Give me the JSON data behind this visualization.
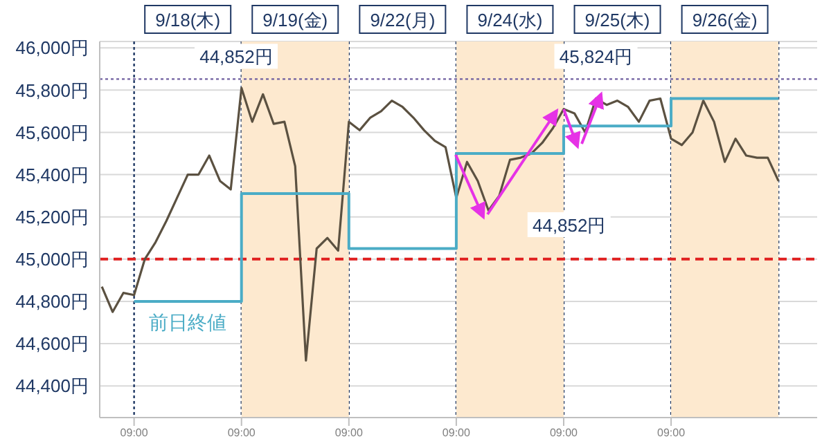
{
  "chart_data": {
    "type": "line",
    "categories": [
      null,
      null,
      null,
      "09:00",
      null,
      null,
      null,
      null,
      null,
      null,
      null,
      null,
      null,
      "09:00",
      null,
      null,
      null,
      null,
      null,
      null,
      null,
      null,
      null,
      "09:00",
      null,
      null,
      null,
      null,
      null,
      null,
      null,
      null,
      null,
      "09:00",
      null,
      null,
      null,
      null,
      null,
      null,
      null,
      null,
      null,
      "09:00",
      null,
      null,
      null,
      null,
      null,
      null,
      null,
      null,
      null,
      "09:00",
      null,
      null,
      null,
      null,
      null,
      null,
      null,
      null,
      null,
      null,
      null,
      null,
      null
    ],
    "ylim": [
      44250,
      46030
    ],
    "yticks": [
      {
        "value": 44400,
        "label": "44,400円"
      },
      {
        "value": 44600,
        "label": "44,600円"
      },
      {
        "value": 44800,
        "label": "44,800円"
      },
      {
        "value": 45000,
        "label": "45,000円"
      },
      {
        "value": 45200,
        "label": "45,200円"
      },
      {
        "value": 45400,
        "label": "45,400円"
      },
      {
        "value": 45600,
        "label": "45,600円"
      },
      {
        "value": 45800,
        "label": "45,800円"
      },
      {
        "value": 46000,
        "label": "46,000円"
      }
    ],
    "grid": true,
    "series": [
      {
        "color": "#5b5141",
        "values": [
          44870,
          44750,
          44840,
          44830,
          45000,
          45080,
          45180,
          45290,
          45400,
          45400,
          45490,
          45370,
          45330,
          45810,
          45650,
          45780,
          45640,
          45650,
          45440,
          44520,
          45050,
          45100,
          45040,
          45650,
          45610,
          45670,
          45700,
          45750,
          45720,
          45670,
          45610,
          45560,
          45530,
          45290,
          45460,
          45370,
          45230,
          45300,
          45470,
          45480,
          45500,
          45550,
          45620,
          45710,
          45690,
          45600,
          45760,
          45730,
          45750,
          45720,
          45650,
          45750,
          45760,
          45570,
          45540,
          45600,
          45750,
          45650,
          45460,
          45570,
          45490,
          45480,
          45480,
          45370,
          null,
          null,
          null
        ]
      },
      {
        "name": "前日終値",
        "type": "step",
        "color": "#4bacc6",
        "values": [
          null,
          null,
          null,
          44800,
          44800,
          44800,
          44800,
          44800,
          44800,
          44800,
          44800,
          44800,
          44800,
          45310,
          45310,
          45310,
          45310,
          45310,
          45310,
          45310,
          45310,
          45310,
          45310,
          45050,
          45050,
          45050,
          45050,
          45050,
          45050,
          45050,
          45050,
          45050,
          45050,
          45500,
          45500,
          45500,
          45500,
          45500,
          45500,
          45500,
          45500,
          45500,
          45500,
          45630,
          45630,
          45630,
          45630,
          45630,
          45630,
          45630,
          45630,
          45630,
          45630,
          45760,
          45760,
          45760,
          45760,
          45760,
          45760,
          45760,
          45760,
          45760,
          45760,
          45760,
          null,
          null,
          null
        ]
      }
    ],
    "ref_lines": [
      {
        "axis": "y",
        "value": 45000,
        "color": "#e02020",
        "line_style": "dashed"
      },
      {
        "axis": "y",
        "value": 45852,
        "color": "#7060a0",
        "line_style": "dotted"
      }
    ],
    "annotations": [
      "9/18(木)",
      "9/19(金)",
      "9/22(月)",
      "9/24(水)",
      "9/25(木)",
      "9/26(金)",
      "44,852円",
      "45,824円",
      "44,852円"
    ]
  }
}
